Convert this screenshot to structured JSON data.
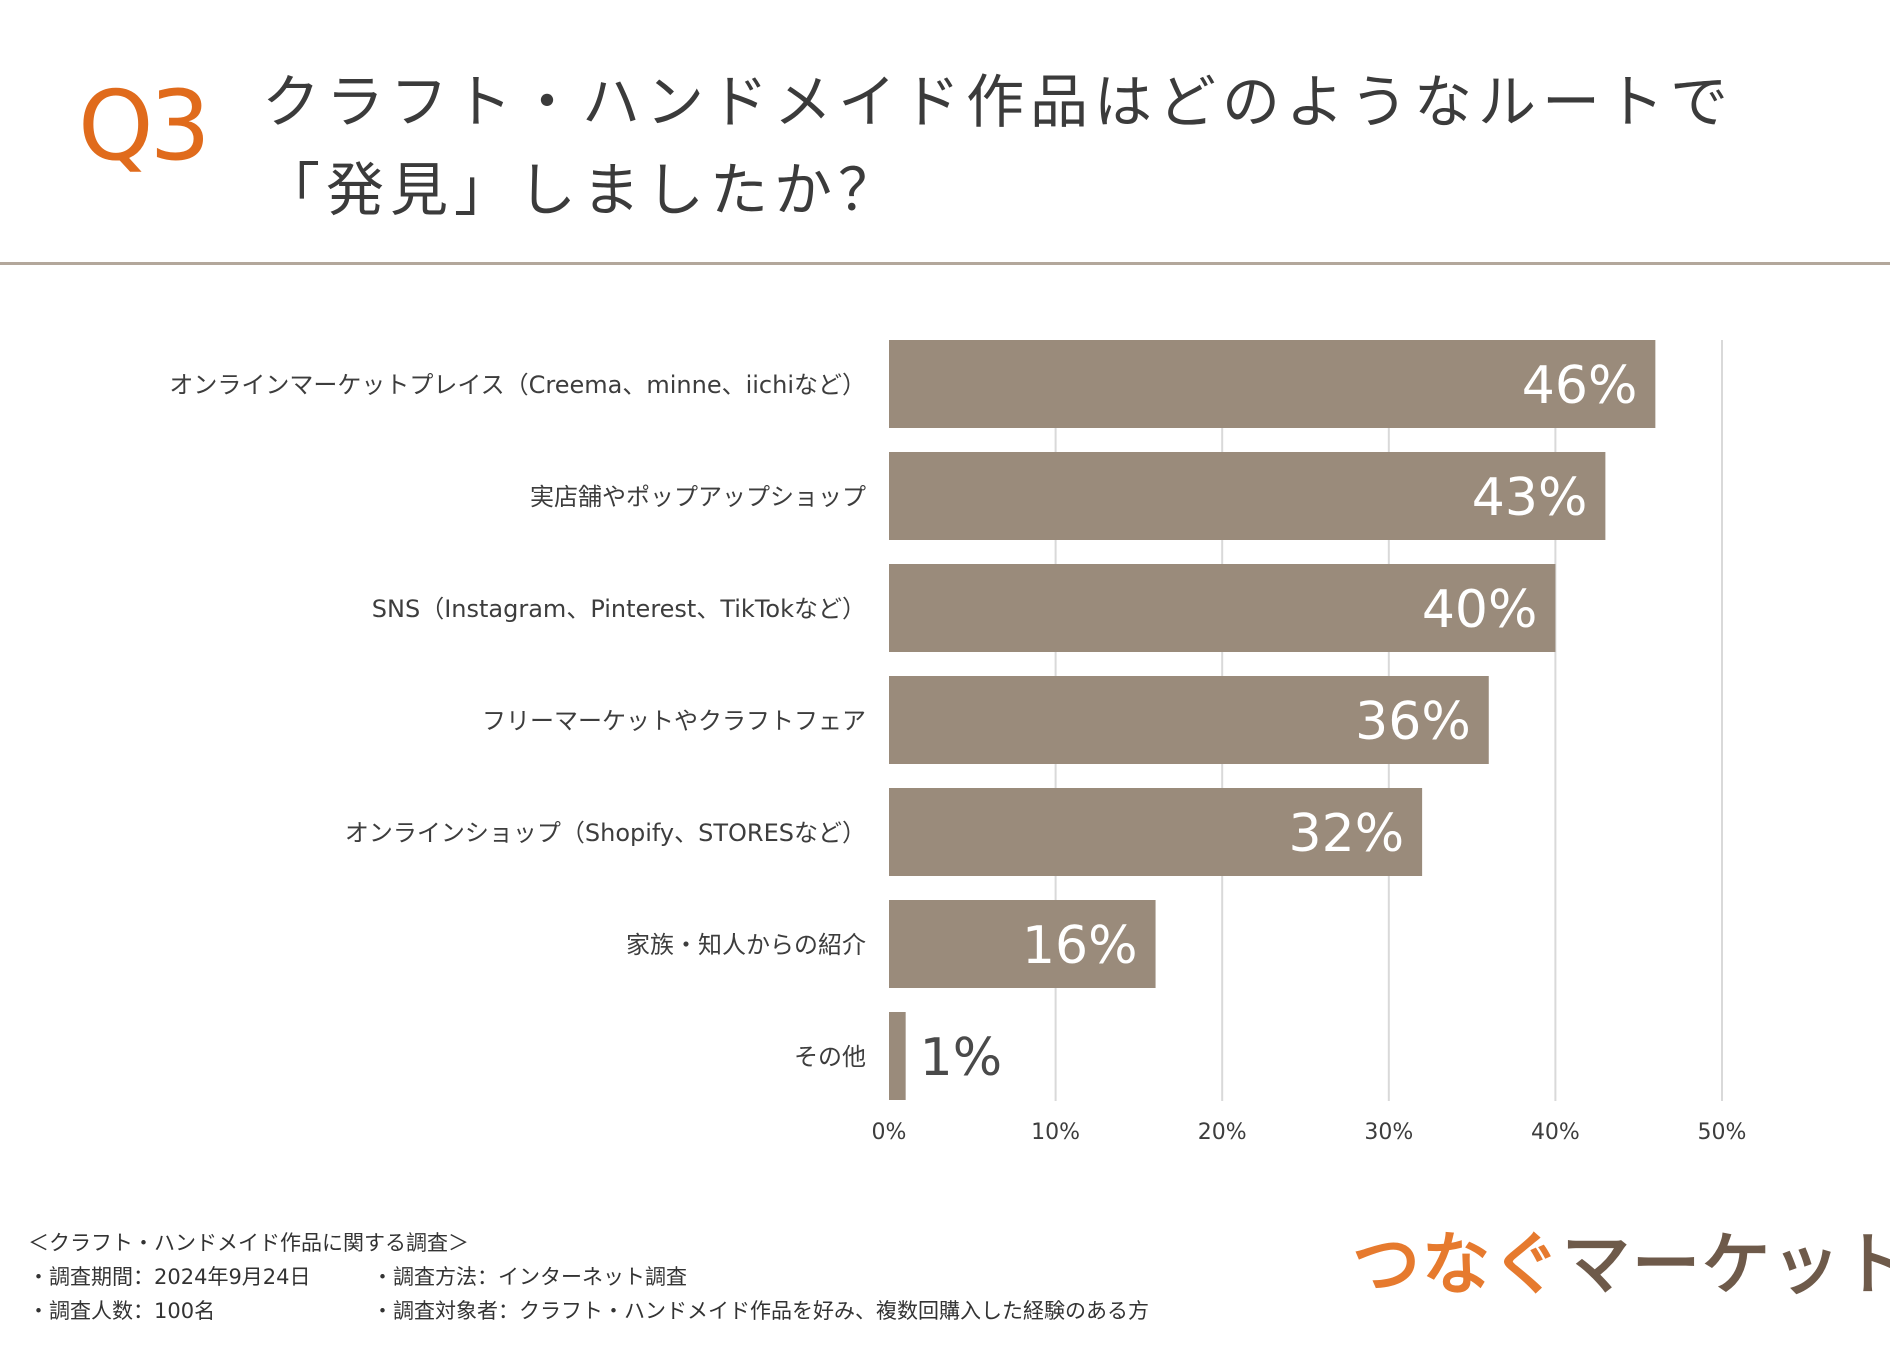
{
  "header": {
    "question": "Q3",
    "title_line1": "クラフト・ハンドメイド作品はどのようなルートで",
    "title_line2": "「発見」しましたか？"
  },
  "colors": {
    "accent": "#e06b1c",
    "bar": "#9a8b7b",
    "grid": "#d9d9d9",
    "logo_orange": "#e67a2e",
    "logo_brown": "#6e5a4a"
  },
  "chart_data": {
    "type": "bar",
    "orientation": "horizontal",
    "title": "クラフト・ハンドメイド作品はどのようなルートで「発見」しましたか？",
    "xlabel": "",
    "ylabel": "",
    "xlim": [
      0,
      50
    ],
    "ticks": [
      0,
      10,
      20,
      30,
      40,
      50
    ],
    "tick_labels": [
      "0%",
      "10%",
      "20%",
      "30%",
      "40%",
      "50%"
    ],
    "grid": true,
    "categories": [
      "オンラインマーケットプレイス（Creema、minne、iichiなど）",
      "実店舗やポップアップショップ",
      "SNS（Instagram、Pinterest、TikTokなど）",
      "フリーマーケットやクラフトフェア",
      "オンラインショップ（Shopify、STORESなど）",
      "家族・知人からの紹介",
      "その他"
    ],
    "values": [
      46,
      43,
      40,
      36,
      32,
      16,
      1
    ],
    "value_labels": [
      "46%",
      "43%",
      "40%",
      "36%",
      "32%",
      "16%",
      "1%"
    ]
  },
  "footer": {
    "survey_title": "＜クラフト・ハンドメイド作品に関する調査＞",
    "period": "・調査期間：2024年9月24日",
    "method": "・調査方法：インターネット調査",
    "sample": "・調査人数：100名",
    "target": "・調査対象者：クラフト・ハンドメイド作品を好み、複数回購入した経験のある方"
  },
  "logo": {
    "part1": "つなぐ",
    "part2": "マーケット"
  }
}
